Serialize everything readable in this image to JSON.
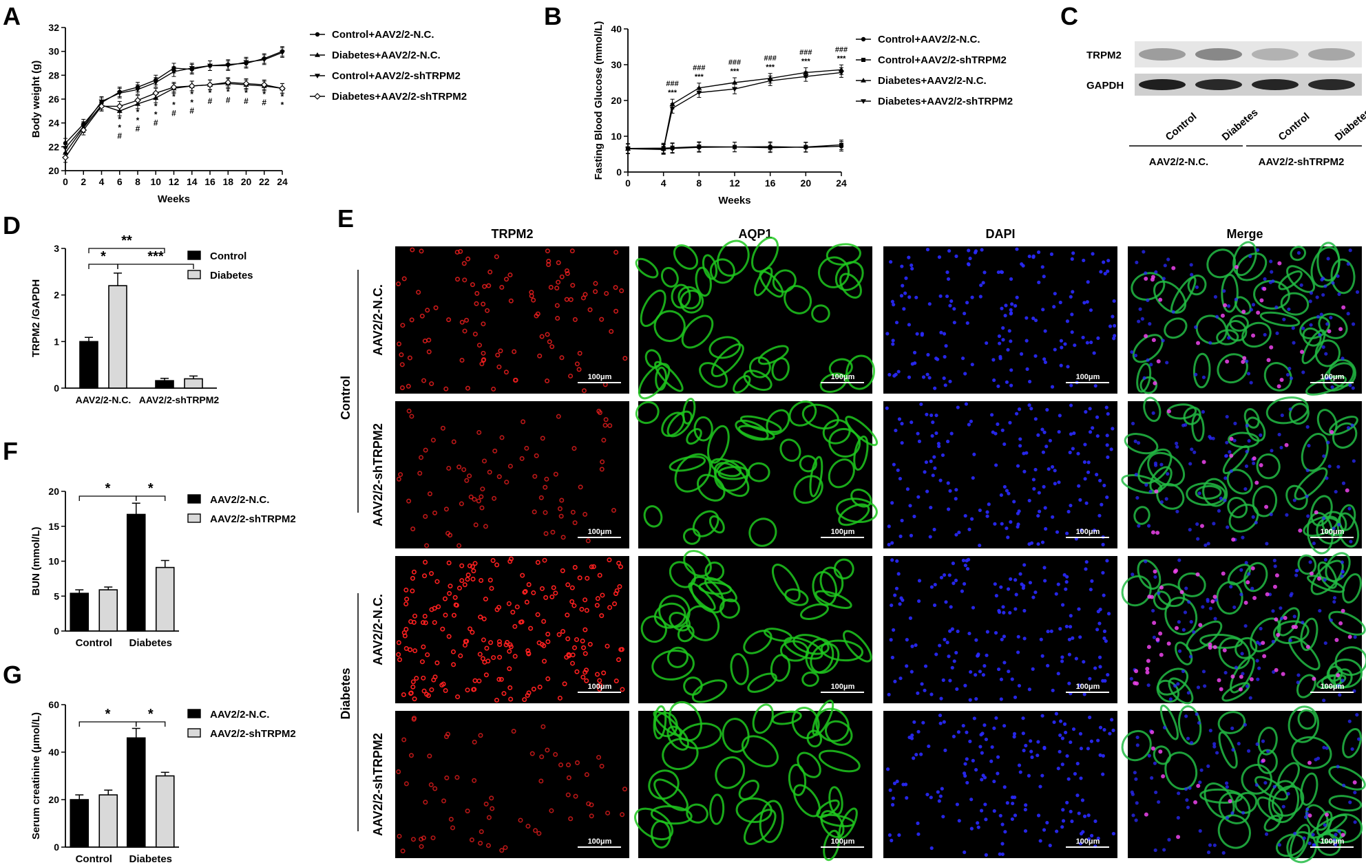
{
  "panel_labels": {
    "A": "A",
    "B": "B",
    "C": "C",
    "D": "D",
    "E": "E",
    "F": "F",
    "G": "G"
  },
  "colors": {
    "black_bar": "#000000",
    "grey_bar": "#d9d9d9",
    "trpm2": "#ff2020",
    "aqp1": "#22dd22",
    "dapi": "#2a2aff",
    "merge_dot": "#ee44ee"
  },
  "chart_data": [
    {
      "id": "A",
      "type": "line",
      "xlabel": "Weeks",
      "ylabel": "Body weight (g)",
      "ylim": [
        20,
        32
      ],
      "yticks": [
        20,
        22,
        24,
        26,
        28,
        30,
        32
      ],
      "xticks": [
        0,
        2,
        4,
        6,
        8,
        10,
        12,
        14,
        16,
        18,
        20,
        22,
        24
      ],
      "x": [
        0,
        2,
        4,
        6,
        8,
        10,
        12,
        14,
        16,
        18,
        20,
        22,
        24
      ],
      "legend_position": "right",
      "series": [
        {
          "name": "Control+AAV2/2-N.C.",
          "marker": "circle",
          "values": [
            22.3,
            23.9,
            25.7,
            26.6,
            27.0,
            27.6,
            28.6,
            28.5,
            28.8,
            28.9,
            29.0,
            29.4,
            30.0
          ]
        },
        {
          "name": "Diabetes+AAV2/2-N.C.",
          "marker": "triangle",
          "values": [
            21.5,
            23.6,
            25.5,
            25.0,
            25.6,
            26.1,
            26.9,
            27.1,
            27.2,
            27.3,
            27.2,
            27.1,
            26.9
          ]
        },
        {
          "name": "Control+AAV2/2-shTRPM2",
          "marker": "triangle-down",
          "values": [
            21.9,
            23.7,
            25.8,
            26.5,
            26.8,
            27.4,
            28.3,
            28.6,
            28.8,
            28.8,
            29.1,
            29.3,
            29.9
          ]
        },
        {
          "name": "Diabetes+AAV2/2-shTRPM2",
          "marker": "open-diamond",
          "values": [
            21.1,
            23.4,
            25.4,
            25.4,
            25.9,
            26.5,
            27.0,
            27.1,
            27.2,
            27.4,
            27.3,
            27.2,
            26.9
          ]
        }
      ],
      "annotations": [
        {
          "x": 6,
          "labels": [
            "*",
            "*",
            "#"
          ]
        },
        {
          "x": 8,
          "labels": [
            "*",
            "*",
            "#"
          ]
        },
        {
          "x": 10,
          "labels": [
            "*",
            "*",
            "#"
          ]
        },
        {
          "x": 12,
          "labels": [
            "*",
            "*",
            "#"
          ]
        },
        {
          "x": 14,
          "labels": [
            "*",
            "*",
            "#"
          ]
        },
        {
          "x": 16,
          "labels": [
            "*",
            "#"
          ]
        },
        {
          "x": 18,
          "labels": [
            "*",
            "#"
          ]
        },
        {
          "x": 20,
          "labels": [
            "*",
            "#"
          ]
        },
        {
          "x": 22,
          "labels": [
            "*",
            "#"
          ]
        },
        {
          "x": 24,
          "labels": [
            "*",
            "*"
          ]
        }
      ]
    },
    {
      "id": "B",
      "type": "line",
      "xlabel": "Weeks",
      "ylabel": "Fasting Blood Glucose (mmol/L)",
      "ylim": [
        0,
        40
      ],
      "yticks": [
        0,
        10,
        20,
        30,
        40
      ],
      "xticks": [
        0,
        4,
        8,
        12,
        16,
        20,
        24
      ],
      "x": [
        0,
        4,
        5,
        8,
        12,
        16,
        20,
        24
      ],
      "legend_position": "right",
      "series": [
        {
          "name": "Control+AAV2/2-N.C.",
          "marker": "circle",
          "values": [
            6.5,
            6.4,
            6.6,
            6.9,
            7.0,
            7.1,
            6.9,
            7.2
          ]
        },
        {
          "name": "Control+AAV2/2-shTRPM2",
          "marker": "square",
          "values": [
            6.6,
            6.7,
            6.8,
            7.1,
            7.0,
            6.8,
            7.0,
            7.6
          ]
        },
        {
          "name": "Diabetes+AAV2/2-N.C.",
          "marker": "triangle",
          "values": [
            6.5,
            6.5,
            19.0,
            23.5,
            25.0,
            26.2,
            27.8,
            28.6
          ]
        },
        {
          "name": "Diabetes+AAV2/2-shTRPM2",
          "marker": "triangle-down",
          "values": [
            6.5,
            6.3,
            17.8,
            22.2,
            23.2,
            25.5,
            26.7,
            27.8
          ]
        }
      ],
      "annotations": [
        {
          "x": 5,
          "labels": [
            "###",
            "***"
          ]
        },
        {
          "x": 8,
          "labels": [
            "###",
            "***"
          ]
        },
        {
          "x": 12,
          "labels": [
            "###",
            "***"
          ]
        },
        {
          "x": 16,
          "labels": [
            "###",
            "***"
          ]
        },
        {
          "x": 20,
          "labels": [
            "###",
            "***"
          ]
        },
        {
          "x": 24,
          "labels": [
            "###",
            "***"
          ]
        }
      ]
    },
    {
      "id": "C",
      "type": "blot",
      "rows": [
        "TRPM2",
        "GAPDH"
      ],
      "lanes": [
        "Control",
        "Diabetes",
        "Control",
        "Diabetes"
      ],
      "groups": [
        "AAV2/2-N.C.",
        "AAV2/2-shTRPM2"
      ],
      "band_intensity": {
        "TRPM2": [
          0.35,
          0.45,
          0.25,
          0.3
        ],
        "GAPDH": [
          0.95,
          0.9,
          0.92,
          0.9
        ]
      }
    },
    {
      "id": "D",
      "type": "bar",
      "ylabel": "TRPM2 /GAPDH",
      "xlabel": "",
      "ylim": [
        0,
        3
      ],
      "yticks": [
        0,
        1,
        2,
        3
      ],
      "categories": [
        "AAV2/2-N.C.",
        "AAV2/2-shTRPM2"
      ],
      "legend_position": "right",
      "series": [
        {
          "name": "Control",
          "values": [
            1.0,
            0.16
          ],
          "errors": [
            0.09,
            0.05
          ]
        },
        {
          "name": "Diabetes",
          "values": [
            2.2,
            0.2
          ],
          "errors": [
            0.27,
            0.06
          ]
        }
      ],
      "significance": [
        "**",
        "*",
        "***"
      ]
    },
    {
      "id": "F",
      "type": "bar",
      "ylabel": "BUN (mmol/L)",
      "xlabel": "",
      "ylim": [
        0,
        20
      ],
      "yticks": [
        0,
        5,
        10,
        15,
        20
      ],
      "categories": [
        "Control",
        "Diabetes"
      ],
      "legend_position": "right",
      "series": [
        {
          "name": "AAV2/2-N.C.",
          "values": [
            5.4,
            16.7
          ],
          "errors": [
            0.5,
            1.6
          ]
        },
        {
          "name": "AAV2/2-shTRPM2",
          "values": [
            5.9,
            9.1
          ],
          "errors": [
            0.4,
            1.0
          ]
        }
      ],
      "significance": [
        "*",
        "*"
      ]
    },
    {
      "id": "G",
      "type": "bar",
      "ylabel": "Serum creatinine (μmol/L)",
      "xlabel": "",
      "ylim": [
        0,
        60
      ],
      "yticks": [
        0,
        20,
        40,
        60
      ],
      "categories": [
        "Control",
        "Diabetes"
      ],
      "legend_position": "right",
      "series": [
        {
          "name": "AAV2/2-N.C.",
          "values": [
            20.0,
            46.0
          ],
          "errors": [
            2.0,
            4.0
          ]
        },
        {
          "name": "AAV2/2-shTRPM2",
          "values": [
            22.0,
            30.0
          ],
          "errors": [
            2.0,
            1.5
          ]
        }
      ],
      "significance": [
        "*",
        "*"
      ]
    },
    {
      "id": "E",
      "type": "image-grid",
      "columns": [
        "TRPM2",
        "AQP1",
        "DAPI",
        "Merge"
      ],
      "groups": [
        "Control",
        "Diabetes"
      ],
      "rows": [
        "AAV2/2-N.C.",
        "AAV2/2-shTRPM2",
        "AAV2/2-N.C.",
        "AAV2/2-shTRPM2"
      ],
      "scale_bar": "100μm",
      "trpm2_density": [
        0.5,
        0.35,
        1.0,
        0.3
      ],
      "magenta_density": [
        0.5,
        0.3,
        1.0,
        0.25
      ]
    }
  ]
}
